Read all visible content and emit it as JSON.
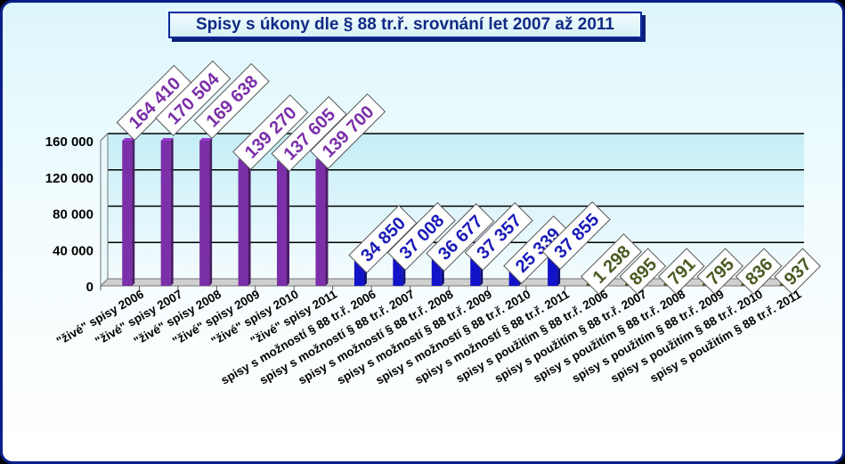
{
  "chart_data": {
    "type": "bar",
    "title": "Spisy s úkony dle § 88 tr.ř. srovnání let 2007 až 2011",
    "xlabel": "",
    "ylabel": "",
    "ylim": [
      0,
      160000
    ],
    "yticks": [
      0,
      40000,
      80000,
      120000,
      160000
    ],
    "ytick_labels": [
      "0",
      "40 000",
      "80 000",
      "120 000",
      "160 000"
    ],
    "grid": true,
    "legend": "none",
    "categories": [
      "\"živé\" spisy 2006",
      "\"živé\" spisy 2007",
      "\"živé\" spisy 2008",
      "\"živé\" spisy 2009",
      "\"živé\" spisy 2010",
      "\"živé\" spisy 2011",
      "spisy s možností § 88 tr.ř. 2006",
      "spisy s možností  § 88 tr.ř. 2007",
      "spisy s možností  § 88 tr.ř. 2008",
      "spisy s možností  § 88 tr.ř. 2009",
      "spisy s možností  § 88 tr.ř. 2010",
      "spisy s možností § 88 tr.ř. 2011",
      "spisy s použitím § 88 tr.ř. 2006",
      "spisy s použitím  § 88 tr.ř. 2007",
      "spisy s použitím  § 88 tr.ř. 2008",
      "spisy s použitím  § 88 tr.ř. 2009",
      "spisy s použitím  § 88 tr.ř. 2010",
      "spisy s použitím § 88 tr.ř. 2011"
    ],
    "values": [
      164410,
      170504,
      169638,
      139270,
      137605,
      139700,
      34850,
      37008,
      36677,
      37357,
      25339,
      37855,
      1298,
      895,
      791,
      795,
      836,
      937
    ],
    "value_labels": [
      "164 410",
      "170 504",
      "169 638",
      "139 270",
      "137 605",
      "139 700",
      "34 850",
      "37 008",
      "36 677",
      "37 357",
      "25 339",
      "37 855",
      "1 298",
      "895",
      "791",
      "795",
      "836",
      "937"
    ],
    "group_colors": [
      "#7b2fa8",
      "#1212c8",
      "#4a5a22"
    ],
    "label_colors": [
      "#7b2fa8",
      "#1a1ab8",
      "#4a5a22"
    ]
  }
}
